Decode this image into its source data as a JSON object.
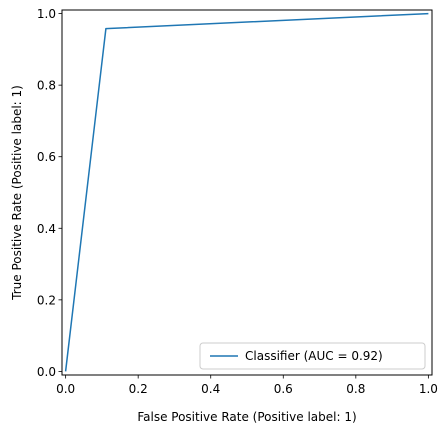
{
  "chart_data": {
    "type": "line",
    "xlabel": "False Positive Rate (Positive label: 1)",
    "ylabel": "True Positive Rate (Positive label: 1)",
    "xlim": [
      -0.01,
      1.01
    ],
    "ylim": [
      -0.01,
      1.01
    ],
    "xticks": [
      0.0,
      0.2,
      0.4,
      0.6,
      0.8,
      1.0
    ],
    "yticks": [
      0.0,
      0.2,
      0.4,
      0.6,
      0.8,
      1.0
    ],
    "xtick_labels": [
      "0.0",
      "0.2",
      "0.4",
      "0.6",
      "0.8",
      "1.0"
    ],
    "ytick_labels": [
      "0.0",
      "0.2",
      "0.4",
      "0.6",
      "0.8",
      "1.0"
    ],
    "grid": false,
    "legend_position": "lower-right",
    "series": [
      {
        "name": "Classifier (AUC = 0.92)",
        "color": "#1f77b4",
        "x": [
          0.0,
          0.111,
          1.0
        ],
        "y": [
          0.0,
          0.958,
          1.0
        ]
      }
    ]
  }
}
